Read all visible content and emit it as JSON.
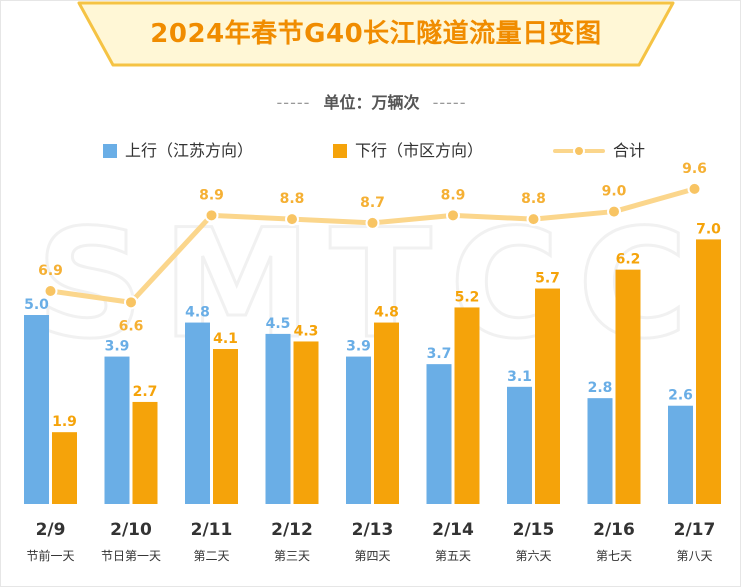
{
  "title": "2024年春节G40长江隧道流量日变图",
  "unit": {
    "dashes_left": "-----",
    "label": "单位：万辆次",
    "dashes_right": "-----"
  },
  "watermark": "SMTCC",
  "legend": {
    "up": "上行（江苏方向）",
    "down": "下行（市区方向）",
    "total": "合计"
  },
  "colors": {
    "up": "#6aaee6",
    "down": "#f5a30a",
    "total_line": "#fbd68c",
    "total_dot": "#f8c463",
    "title": "#f08c00",
    "banner_fill": "#fff7d6",
    "banner_stroke": "#f5c344"
  },
  "chart_data": {
    "type": "bar",
    "title": "2024年春节G40长江隧道流量日变图",
    "unit": "万辆次",
    "categories": [
      "2/9",
      "2/10",
      "2/11",
      "2/12",
      "2/13",
      "2/14",
      "2/15",
      "2/16",
      "2/17"
    ],
    "day_labels": [
      "节前一天",
      "节日第一天",
      "第二天",
      "第三天",
      "第四天",
      "第五天",
      "第六天",
      "第七天",
      "第八天"
    ],
    "series": [
      {
        "name": "上行（江苏方向）",
        "kind": "bar",
        "values": [
          5.0,
          3.9,
          4.8,
          4.5,
          3.9,
          3.7,
          3.1,
          2.8,
          2.6
        ]
      },
      {
        "name": "下行（市区方向）",
        "kind": "bar",
        "values": [
          1.9,
          2.7,
          4.1,
          4.3,
          4.8,
          5.2,
          5.7,
          6.2,
          7.0
        ]
      },
      {
        "name": "合计",
        "kind": "line",
        "values": [
          6.9,
          6.6,
          8.9,
          8.8,
          8.7,
          8.9,
          8.8,
          9.0,
          9.6
        ]
      }
    ],
    "bar_ylim": [
      0,
      7.6
    ],
    "line_ylim": [
      0,
      17.4
    ],
    "legend_position": "top",
    "grid": false
  }
}
